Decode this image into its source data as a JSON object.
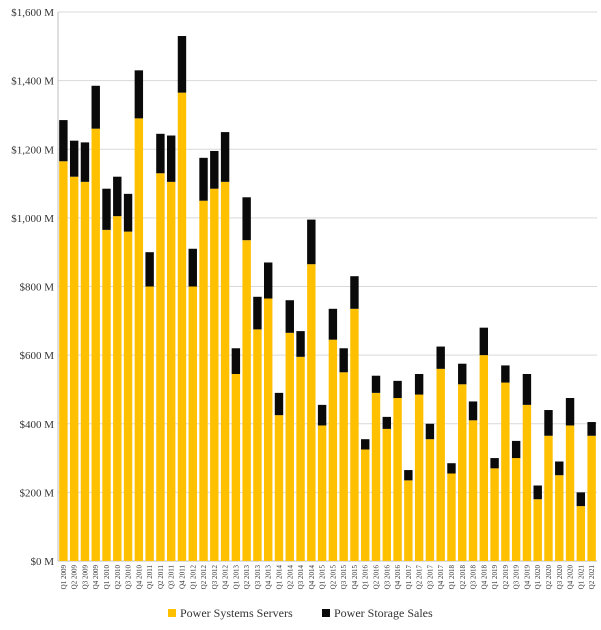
{
  "chart_data": {
    "type": "bar",
    "stacked": true,
    "title": "",
    "xlabel": "",
    "ylabel": "",
    "ylim": [
      0,
      1600
    ],
    "y_ticks": [
      "$0 M",
      "$200 M",
      "$400 M",
      "$600 M",
      "$800 M",
      "$1,000 M",
      "$1,200 M",
      "$1,400 M",
      "$1,600 M"
    ],
    "y_tick_values": [
      0,
      200,
      400,
      600,
      800,
      1000,
      1200,
      1400,
      1600
    ],
    "grid": true,
    "legend_position": "bottom",
    "categories": [
      "Q1 2009",
      "Q2 2009",
      "Q3 2009",
      "Q4 2009",
      "Q1 2010",
      "Q2 2010",
      "Q3 2010",
      "Q4 2010",
      "Q1 2011",
      "Q2 2011",
      "Q3 2011",
      "Q4 2011",
      "Q1 2012",
      "Q2 2012",
      "Q3 2012",
      "Q4 2012",
      "Q1 2013",
      "Q2 2013",
      "Q3 2013",
      "Q4 2013",
      "Q1 2014",
      "Q2 2014",
      "Q3 2014",
      "Q4 2014",
      "Q1 2015",
      "Q2 2015",
      "Q3 2015",
      "Q4 2015",
      "Q1 2016",
      "Q2 2016",
      "Q3 2016",
      "Q4 2016",
      "Q1 2017",
      "Q2 2017",
      "Q3 2017",
      "Q4 2017",
      "Q1 2018",
      "Q2 2018",
      "Q3 2018",
      "Q4 2018",
      "Q1 2019",
      "Q2 2019",
      "Q3 2019",
      "Q4 2019",
      "Q1 2020",
      "Q2 2020",
      "Q3 2020",
      "Q4 2020",
      "Q1 2021",
      "Q2 2021"
    ],
    "series": [
      {
        "name": "Power Systems Servers",
        "color": "#FFC000",
        "values": [
          1165,
          1120,
          1105,
          1260,
          965,
          1005,
          960,
          1290,
          800,
          1130,
          1105,
          1365,
          800,
          1050,
          1085,
          1105,
          545,
          935,
          675,
          765,
          425,
          665,
          595,
          865,
          395,
          645,
          550,
          735,
          325,
          490,
          385,
          475,
          235,
          485,
          355,
          560,
          255,
          515,
          410,
          600,
          270,
          520,
          300,
          455,
          180,
          365,
          250,
          395,
          160,
          365
        ]
      },
      {
        "name": "Power Storage Sales",
        "color": "#0A0A0A",
        "values": [
          120,
          105,
          115,
          125,
          120,
          115,
          110,
          140,
          100,
          115,
          135,
          165,
          110,
          125,
          110,
          145,
          75,
          125,
          95,
          105,
          65,
          95,
          75,
          130,
          60,
          90,
          70,
          95,
          30,
          50,
          35,
          50,
          30,
          60,
          45,
          65,
          30,
          60,
          55,
          80,
          30,
          50,
          50,
          90,
          40,
          75,
          40,
          80,
          40,
          40
        ]
      }
    ]
  }
}
